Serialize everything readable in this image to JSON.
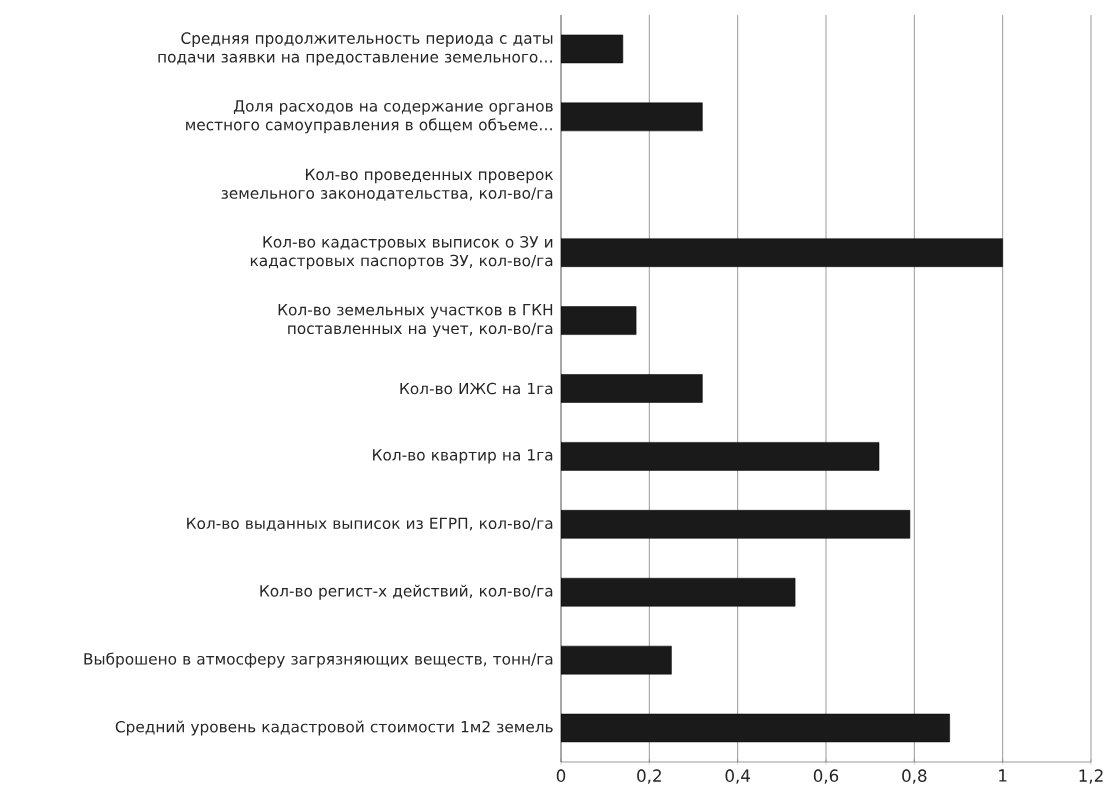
{
  "chart_data": {
    "type": "bar",
    "orientation": "horizontal",
    "grid": "x",
    "color": "#1a1a1a",
    "categories": [
      "Средняя продолжительность периода с даты подачи заявки на предоставление земельного…",
      "Доля расходов на содержание органов местного самоуправления в общем объеме…",
      "Кол-во проведенных проверок земельного законодательства, кол-во/га",
      "Кол-во кадастровых выписок о ЗУ и кадастровых паспортов ЗУ, кол-во/га",
      "Кол-во земельных участков в ГКН поставленных на учет, кол-во/га",
      "Кол-во ИЖС на 1га",
      "Кол-во квартир на 1га",
      "Кол-во выданных выписок из ЕГРП, кол-во/га",
      "Кол-во регист-х действий, кол-во/га",
      "Выброшено в атмосферу загрязняющих веществ, тонн/га",
      "Средний уровень кадастровой стоимости 1м2 земель"
    ],
    "values": [
      0.14,
      0.32,
      null,
      1.0,
      0.17,
      0.32,
      0.72,
      0.79,
      0.53,
      0.25,
      0.88
    ],
    "xlim": [
      0,
      1.2
    ],
    "xticks": [
      0,
      {
        "value": 0.2,
        "label": "0,2"
      },
      {
        "value": 0.4,
        "label": "0,4"
      },
      {
        "value": 0.6,
        "label": "0,6"
      },
      {
        "value": 0.8,
        "label": "0,8"
      },
      1,
      {
        "value": 1.2,
        "label": "1,2"
      }
    ]
  }
}
